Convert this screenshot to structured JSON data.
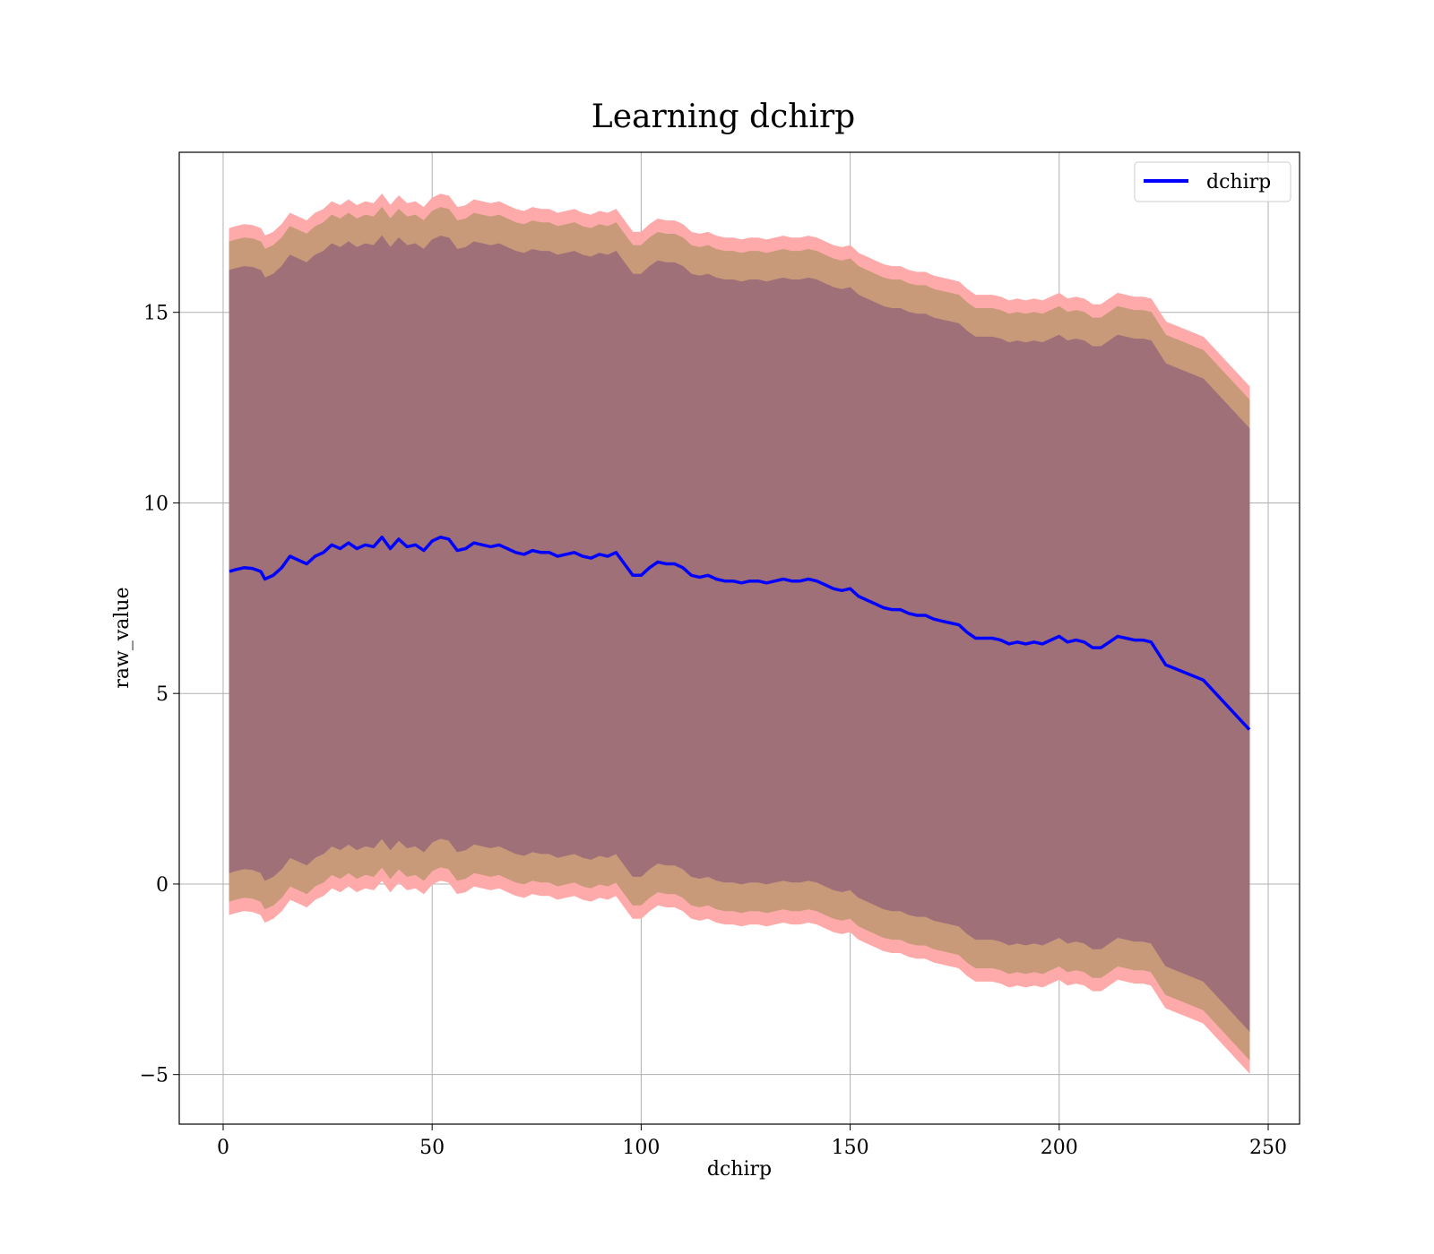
{
  "chart_data": {
    "type": "line",
    "title": "Learning dchirp",
    "xlabel": "dchirp",
    "ylabel": "raw_value",
    "xlim": [
      -10.5,
      257.5
    ],
    "ylim": [
      -6.3,
      19.2
    ],
    "xticks": [
      0,
      50,
      100,
      150,
      200,
      250
    ],
    "yticks": [
      -5,
      0,
      5,
      10,
      15
    ],
    "xtick_labels": [
      "0",
      "50",
      "100",
      "150",
      "200",
      "250"
    ],
    "ytick_labels": [
      "−5",
      "0",
      "5",
      "10",
      "15"
    ],
    "grid": true,
    "legend_position": "top-right",
    "colors": {
      "line": "#0000ff",
      "band_outer": "#ffaaaa",
      "band_middle": "#c89a7a",
      "band_inner": "#a07079"
    },
    "series": [
      {
        "name": "dchirp",
        "x": [
          1.5,
          3,
          5,
          7,
          9,
          10,
          12,
          14,
          16,
          18,
          20,
          22,
          24,
          26,
          28,
          30,
          32,
          34,
          36,
          38,
          40,
          42,
          44,
          46,
          48,
          50,
          52,
          54,
          56,
          58,
          60,
          62,
          64,
          66,
          68,
          70,
          72,
          74,
          76,
          78,
          80,
          82,
          84,
          86,
          88,
          90,
          92,
          94,
          96,
          98,
          100,
          102,
          104,
          106,
          108,
          110,
          112,
          114,
          116,
          118,
          120,
          122,
          124,
          126,
          128,
          130,
          132,
          134,
          136,
          138,
          140,
          142,
          144,
          146,
          148,
          150,
          152,
          154,
          156,
          158,
          160,
          162,
          164,
          166,
          168,
          170,
          172,
          174,
          176,
          178,
          180,
          182,
          184,
          186,
          188,
          190,
          192,
          194,
          196,
          198,
          200,
          202,
          204,
          206,
          208,
          210,
          212,
          214,
          216,
          218,
          220,
          222,
          225.5,
          234.5,
          245.5
        ],
        "y": [
          8.2,
          8.25,
          8.3,
          8.28,
          8.2,
          8.0,
          8.1,
          8.3,
          8.6,
          8.5,
          8.4,
          8.6,
          8.7,
          8.9,
          8.8,
          8.95,
          8.8,
          8.9,
          8.85,
          9.1,
          8.8,
          9.05,
          8.85,
          8.9,
          8.75,
          9.0,
          9.1,
          9.05,
          8.75,
          8.8,
          8.95,
          8.9,
          8.85,
          8.9,
          8.8,
          8.7,
          8.65,
          8.75,
          8.7,
          8.7,
          8.6,
          8.65,
          8.7,
          8.6,
          8.55,
          8.65,
          8.6,
          8.7,
          8.4,
          8.1,
          8.1,
          8.3,
          8.45,
          8.4,
          8.4,
          8.3,
          8.1,
          8.05,
          8.1,
          8.0,
          7.95,
          7.95,
          7.9,
          7.95,
          7.95,
          7.9,
          7.95,
          8.0,
          7.95,
          7.95,
          8.0,
          7.95,
          7.85,
          7.75,
          7.7,
          7.75,
          7.55,
          7.45,
          7.35,
          7.25,
          7.2,
          7.2,
          7.1,
          7.05,
          7.05,
          6.95,
          6.9,
          6.85,
          6.8,
          6.6,
          6.45,
          6.45,
          6.45,
          6.4,
          6.3,
          6.35,
          6.3,
          6.35,
          6.3,
          6.4,
          6.5,
          6.35,
          6.4,
          6.35,
          6.2,
          6.2,
          6.35,
          6.5,
          6.45,
          6.4,
          6.4,
          6.35,
          5.75,
          5.35,
          4.05
        ]
      }
    ],
    "bands": [
      {
        "offset": 9.0,
        "color_key": "band_outer"
      },
      {
        "offset": 8.65,
        "color_key": "band_middle"
      },
      {
        "offset": 7.9,
        "color_key": "band_inner"
      }
    ]
  }
}
